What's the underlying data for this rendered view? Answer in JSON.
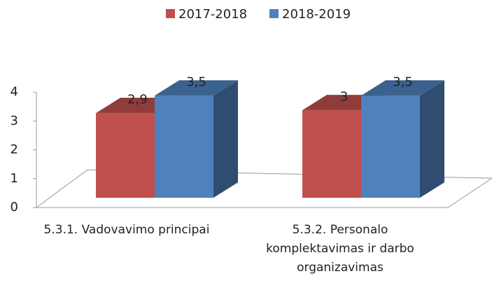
{
  "chart_data": {
    "type": "bar3d",
    "categories": [
      "5.3.1. Vadovavimo principai",
      "5.3.2. Personalo komplektavimas ir darbo organizavimas"
    ],
    "series": [
      {
        "name": "2017-2018",
        "color": "#c0504d",
        "values": [
          2.9,
          3
        ],
        "value_labels": [
          "2,9",
          "3"
        ]
      },
      {
        "name": "2018-2019",
        "color": "#4f81bd",
        "values": [
          3.5,
          3.5
        ],
        "value_labels": [
          "3,5",
          "3,5"
        ]
      }
    ],
    "ylim": [
      0,
      4
    ],
    "yticks": [
      0,
      1,
      2,
      3,
      4
    ],
    "legend": "top"
  }
}
